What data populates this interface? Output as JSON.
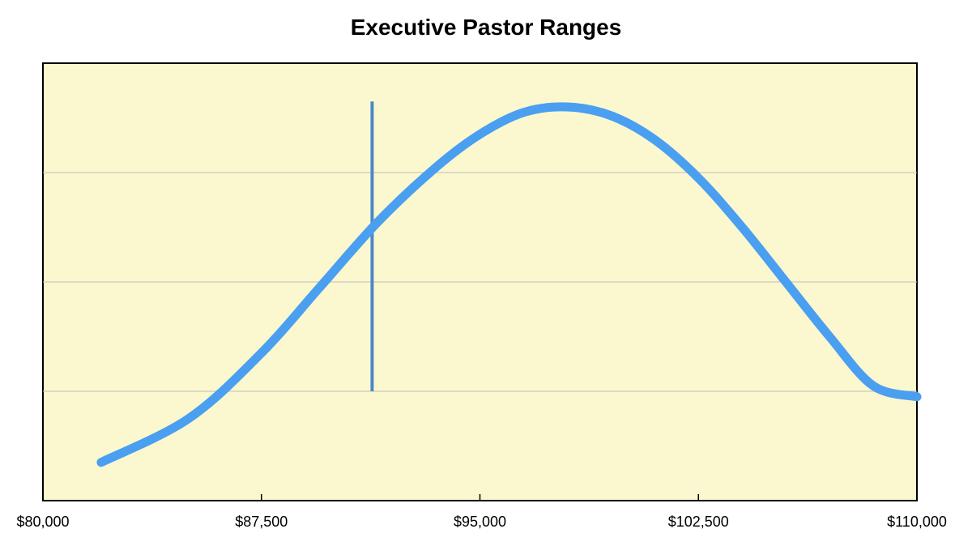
{
  "chart_data": {
    "type": "line",
    "title": "Executive Pastor Ranges",
    "xlabel": "",
    "ylabel": "",
    "xlim": [
      80000,
      110000
    ],
    "ylim": [
      0,
      4
    ],
    "grid": "horizontal",
    "x_ticks": [
      80000,
      87500,
      95000,
      102500,
      110000
    ],
    "x_tick_labels": [
      "$80,000",
      "$87,500",
      "$95,000",
      "$102,500",
      "$110,000"
    ],
    "y_ticks": [
      1,
      2,
      3
    ],
    "y_tick_labels": [
      "",
      "",
      ""
    ],
    "series": [
      {
        "x": [
          82000,
          85000,
          87500,
          89500,
          91500,
          93500,
          95000,
          96500,
          98000,
          99500,
          101000,
          102500,
          104000,
          105500,
          107000,
          108500,
          110000
        ],
        "y": [
          0.35,
          0.75,
          1.35,
          1.95,
          2.55,
          3.05,
          3.35,
          3.55,
          3.6,
          3.52,
          3.3,
          2.95,
          2.5,
          2.0,
          1.5,
          1.05,
          0.95
        ],
        "color": "#4a9ff0"
      }
    ],
    "marker_line": {
      "x": 91300,
      "y_start": 1.0,
      "y_end": 3.65,
      "color": "#4b89c8"
    },
    "colors": {
      "plot_background": "#fbf8cf",
      "gridline": "#bdbdbd",
      "axis": "#000000"
    }
  }
}
